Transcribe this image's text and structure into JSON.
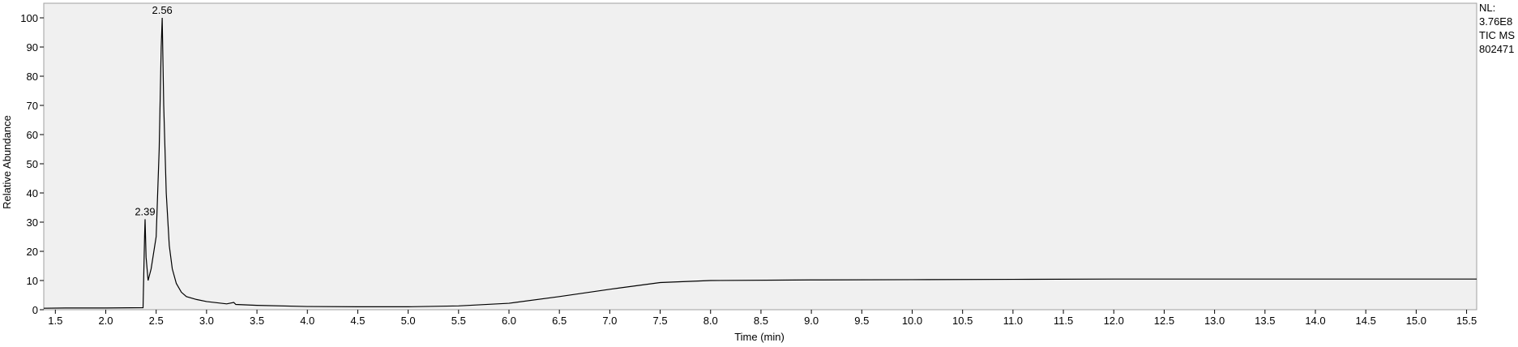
{
  "chart_data": {
    "type": "line",
    "x_label": "Time (min)",
    "y_label": "Relative Abundance",
    "xlim": [
      1.385,
      15.6
    ],
    "ylim": [
      0,
      105
    ],
    "xticks": [
      1.5,
      {
        "value": 2,
        "label": "2.0"
      },
      2.5,
      {
        "value": 3,
        "label": "3.0"
      },
      3.5,
      {
        "value": 4,
        "label": "4.0"
      },
      4.5,
      {
        "value": 5,
        "label": "5.0"
      },
      5.5,
      {
        "value": 6,
        "label": "6.0"
      },
      6.5,
      {
        "value": 7,
        "label": "7.0"
      },
      7.5,
      {
        "value": 8,
        "label": "8.0"
      },
      8.5,
      {
        "value": 9,
        "label": "9.0"
      },
      9.5,
      {
        "value": 10,
        "label": "10.0"
      },
      10.5,
      {
        "value": 11,
        "label": "11.0"
      },
      11.5,
      {
        "value": 12,
        "label": "12.0"
      },
      12.5,
      {
        "value": 13,
        "label": "13.0"
      },
      13.5,
      {
        "value": 14,
        "label": "14.0"
      },
      14.5,
      {
        "value": 15,
        "label": "15.0"
      },
      15.5
    ],
    "yticks": [
      0,
      10,
      20,
      30,
      40,
      50,
      60,
      70,
      80,
      90,
      100
    ],
    "color": "#000000",
    "x": [
      1.385,
      1.6,
      2.0,
      2.37,
      2.385,
      2.39,
      2.4,
      2.42,
      2.45,
      2.5,
      2.53,
      2.55,
      2.56,
      2.575,
      2.6,
      2.63,
      2.66,
      2.7,
      2.75,
      2.8,
      2.9,
      3.0,
      3.2,
      3.27,
      3.29,
      3.5,
      4.0,
      4.5,
      5.0,
      5.5,
      6.0,
      6.5,
      7.0,
      7.5,
      8.0,
      9.0,
      10.0,
      11.0,
      12.0,
      13.0,
      14.0,
      15.0,
      15.6
    ],
    "values": [
      0.5,
      0.6,
      0.6,
      0.7,
      25,
      31,
      18,
      10,
      14,
      25,
      55,
      90,
      100,
      70,
      40,
      22,
      14,
      9,
      6,
      4.5,
      3.5,
      2.8,
      2,
      2.5,
      1.8,
      1.5,
      1.1,
      1,
      1,
      1.3,
      2.2,
      4.5,
      7,
      9.3,
      10,
      10.2,
      10.3,
      10.4,
      10.5,
      10.5,
      10.5,
      10.5,
      10.5
    ],
    "annotations": [
      {
        "text": "2.56",
        "x": 2.56,
        "y": 100
      },
      {
        "text": "2.39",
        "x": 2.39,
        "y": 31
      }
    ],
    "info": [
      "NL:",
      "3.76E8",
      "TIC  MS",
      "802471"
    ]
  }
}
